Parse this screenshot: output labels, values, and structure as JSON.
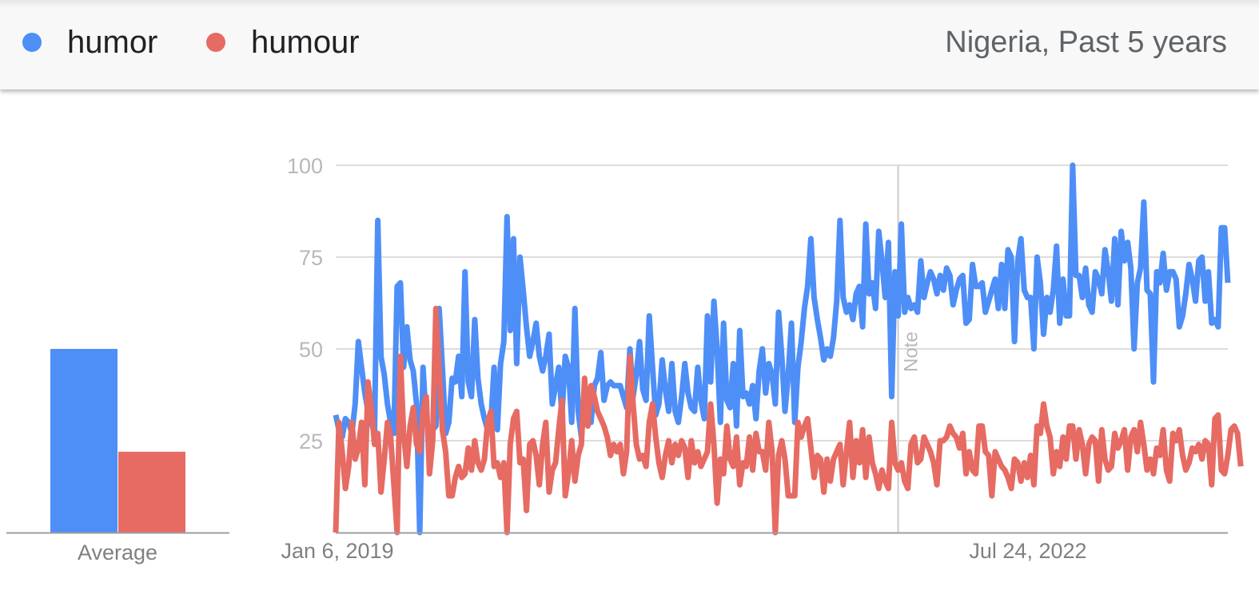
{
  "header": {
    "legend": [
      {
        "label": "humor",
        "color": "#4e8ef7"
      },
      {
        "label": "humour",
        "color": "#e66b63"
      }
    ],
    "region": "Nigeria, Past 5 years"
  },
  "chart_data": [
    {
      "type": "bar",
      "categories": [
        "Average"
      ],
      "series": [
        {
          "name": "humor",
          "values": [
            50
          ]
        },
        {
          "name": "humour",
          "values": [
            22
          ]
        }
      ],
      "ylim": [
        0,
        100
      ]
    },
    {
      "type": "line",
      "x_tick_labels": [
        "Jan 6, 2019",
        "Jul 24, 2022"
      ],
      "x_tick_positions": [
        0,
        183
      ],
      "y_ticks": [
        "100",
        "75",
        "50",
        "25"
      ],
      "y_tick_values": [
        100,
        75,
        50,
        25
      ],
      "ylim": [
        0,
        100
      ],
      "grid": true,
      "annotation": {
        "label": "Note",
        "at_index": 174
      },
      "series": [
        {
          "name": "humor",
          "color": "#4e8ef7",
          "values": [
            32,
            28,
            26,
            31,
            30,
            27,
            35,
            52,
            45,
            38,
            33,
            30,
            27,
            85,
            48,
            43,
            35,
            30,
            27,
            67,
            68,
            45,
            56,
            47,
            44,
            35,
            0,
            45,
            30,
            28,
            28,
            29,
            61,
            45,
            27,
            30,
            42,
            41,
            48,
            37,
            71,
            41,
            37,
            58,
            42,
            35,
            31,
            28,
            30,
            45,
            28,
            46,
            52,
            86,
            55,
            80,
            46,
            75,
            66,
            56,
            48,
            52,
            57,
            48,
            44,
            48,
            54,
            35,
            40,
            45,
            32,
            48,
            45,
            30,
            61,
            33,
            26,
            40,
            38,
            30,
            40,
            42,
            49,
            36,
            40,
            41,
            40,
            40,
            40,
            37,
            34,
            50,
            37,
            43,
            52,
            39,
            36,
            59,
            45,
            32,
            35,
            47,
            39,
            33,
            46,
            33,
            30,
            37,
            46,
            38,
            34,
            33,
            45,
            36,
            31,
            59,
            41,
            63,
            50,
            30,
            57,
            36,
            34,
            46,
            29,
            55,
            37,
            38,
            35,
            40,
            31,
            44,
            50,
            38,
            46,
            43,
            35,
            60,
            48,
            33,
            43,
            57,
            30,
            45,
            52,
            61,
            67,
            80,
            64,
            58,
            53,
            47,
            50,
            48,
            53,
            63,
            85,
            64,
            60,
            62,
            58,
            65,
            67,
            56,
            84,
            65,
            68,
            61,
            82,
            74,
            64,
            79,
            37,
            71,
            59,
            84,
            60,
            64,
            61,
            62,
            60,
            74,
            64,
            68,
            71,
            69,
            65,
            70,
            66,
            72,
            70,
            62,
            66,
            69,
            70,
            57,
            58,
            73,
            67,
            67,
            68,
            60,
            63,
            66,
            69,
            61,
            73,
            61,
            77,
            75,
            52,
            74,
            80,
            66,
            64,
            64,
            50,
            75,
            68,
            54,
            64,
            60,
            66,
            78,
            57,
            69,
            59,
            59,
            100,
            70,
            70,
            64,
            72,
            62,
            60,
            71,
            69,
            65,
            77,
            71,
            63,
            80,
            62,
            82,
            74,
            79,
            72,
            50,
            68,
            72,
            90,
            66,
            65,
            41,
            71,
            68,
            76,
            66,
            71,
            71,
            69,
            56,
            59,
            65,
            73,
            69,
            63,
            74,
            75,
            63,
            71,
            57,
            58,
            56,
            83,
            83,
            68
          ]
        },
        {
          "name": "humour",
          "color": "#e66b63",
          "values": [
            0,
            30,
            22,
            12,
            18,
            30,
            20,
            23,
            30,
            13,
            41,
            34,
            24,
            27,
            11,
            20,
            30,
            26,
            13,
            0,
            48,
            27,
            18,
            29,
            34,
            24,
            22,
            33,
            37,
            16,
            25,
            61,
            44,
            28,
            22,
            10,
            10,
            15,
            18,
            15,
            16,
            23,
            17,
            25,
            19,
            17,
            20,
            30,
            33,
            18,
            19,
            15,
            19,
            0,
            24,
            31,
            33,
            19,
            20,
            6,
            24,
            25,
            21,
            13,
            24,
            30,
            11,
            17,
            19,
            28,
            36,
            10,
            16,
            25,
            14,
            21,
            24,
            42,
            29,
            40,
            37,
            33,
            31,
            29,
            26,
            21,
            24,
            22,
            24,
            16,
            22,
            48,
            35,
            24,
            20,
            21,
            18,
            30,
            35,
            26,
            19,
            15,
            21,
            25,
            19,
            24,
            21,
            25,
            23,
            15,
            25,
            19,
            22,
            18,
            20,
            22,
            35,
            24,
            8,
            20,
            16,
            29,
            20,
            18,
            26,
            13,
            19,
            18,
            26,
            17,
            27,
            22,
            22,
            17,
            30,
            22,
            0,
            21,
            25,
            20,
            10,
            10,
            10,
            30,
            26,
            29,
            31,
            23,
            15,
            21,
            20,
            11,
            20,
            14,
            20,
            22,
            24,
            13,
            22,
            30,
            15,
            25,
            19,
            28,
            15,
            26,
            19,
            16,
            12,
            17,
            14,
            12,
            30,
            19,
            17,
            19,
            14,
            12,
            24,
            26,
            19,
            20,
            26,
            24,
            22,
            19,
            13,
            25,
            25,
            26,
            29,
            27,
            26,
            23,
            27,
            16,
            22,
            17,
            16,
            29,
            29,
            22,
            21,
            10,
            22,
            20,
            18,
            17,
            15,
            12,
            20,
            19,
            14,
            19,
            15,
            21,
            13,
            29,
            27,
            35,
            29,
            26,
            16,
            22,
            18,
            26,
            20,
            29,
            29,
            20,
            28,
            24,
            16,
            24,
            26,
            25,
            14,
            28,
            20,
            17,
            18,
            27,
            23,
            25,
            28,
            17,
            26,
            28,
            22,
            30,
            24,
            17,
            20,
            16,
            23,
            21,
            28,
            17,
            14,
            27,
            25,
            28,
            21,
            17,
            19,
            23,
            22,
            24,
            20,
            25,
            24,
            13,
            31,
            32,
            17,
            16,
            21,
            28,
            29,
            27,
            18
          ]
        }
      ]
    }
  ]
}
